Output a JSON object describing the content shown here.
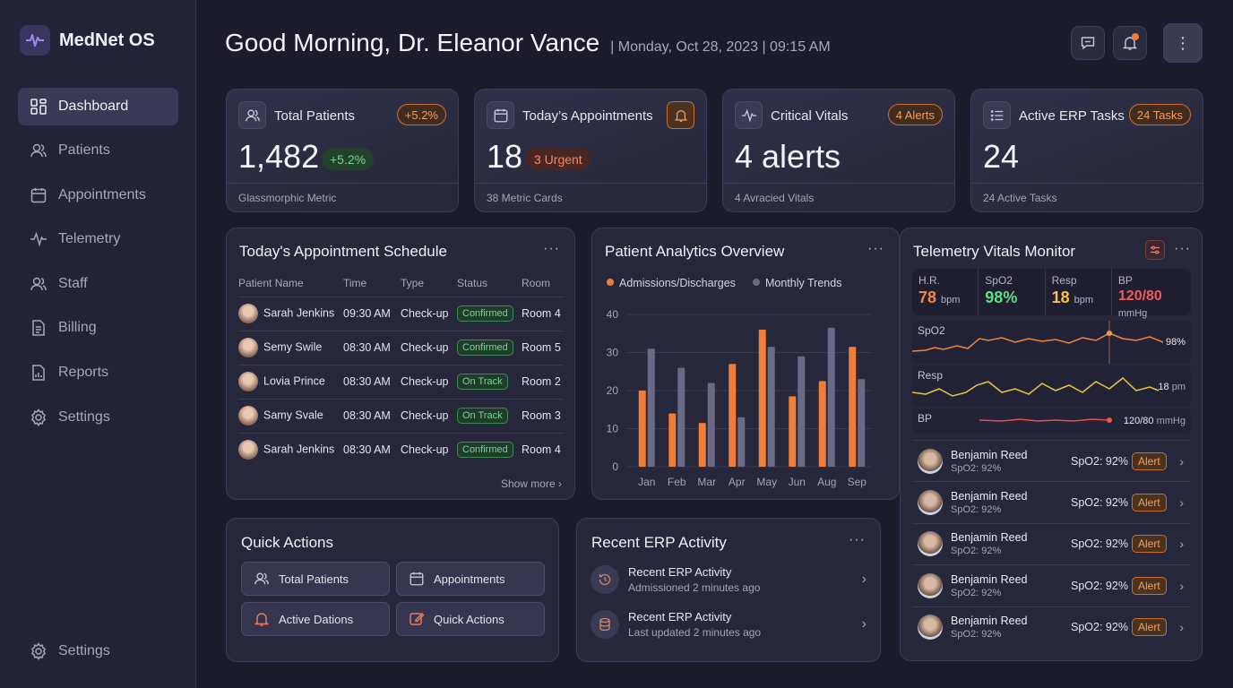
{
  "brand": {
    "name": "MedNet OS"
  },
  "sidebar": {
    "items": [
      {
        "label": "Dashboard",
        "icon": "dashboard-icon"
      },
      {
        "label": "Patients",
        "icon": "users-icon"
      },
      {
        "label": "Appointments",
        "icon": "calendar-icon"
      },
      {
        "label": "Telemetry",
        "icon": "pulse-icon"
      },
      {
        "label": "Staff",
        "icon": "staff-icon"
      },
      {
        "label": "Billing",
        "icon": "billing-icon"
      },
      {
        "label": "Reports",
        "icon": "reports-icon"
      },
      {
        "label": "Settings",
        "icon": "gear-icon"
      }
    ],
    "bottom": {
      "label": "Settings",
      "icon": "gear-icon"
    }
  },
  "header": {
    "greeting": "Good Morning, Dr. Eleanor Vance",
    "datetime": "| Monday, Oct 28, 2023 | 09:15 AM"
  },
  "metrics": [
    {
      "title": "Total Patients",
      "badge": "+5.2%",
      "value": "1,482",
      "pill": "+5.2%",
      "footer": "Glassmorphic Metric"
    },
    {
      "title": "Today’s Appointments",
      "value": "18",
      "pill": "3 Urgent",
      "footer": "38 Metric Cards"
    },
    {
      "title": "Critical Vitals",
      "badge": "4 Alerts",
      "value": "4 alerts",
      "footer": "4 Avracied Vitals"
    },
    {
      "title": "Active ERP Tasks",
      "badge": "24 Tasks",
      "value": "24",
      "footer": "24 Active Tasks"
    }
  ],
  "schedule": {
    "title": "Today's Appointment Schedule",
    "columns": [
      "Patient Name",
      "Time",
      "Type",
      "Status",
      "Room"
    ],
    "rows": [
      {
        "name": "Sarah Jenkins",
        "time": "09:30 AM",
        "type": "Check-up",
        "status": "Confirmed",
        "room": "Room 4"
      },
      {
        "name": "Semy Swile",
        "time": "08:30 AM",
        "type": "Check-up",
        "status": "Confirmed",
        "room": "Room 5"
      },
      {
        "name": "Lovia Prince",
        "time": "08:30 AM",
        "type": "Check-up",
        "status": "On Track",
        "room": "Room 2"
      },
      {
        "name": "Samy Svale",
        "time": "08:30 AM",
        "type": "Check-up",
        "status": "On Track",
        "room": "Room 3"
      },
      {
        "name": "Sarah Jenkins",
        "time": "08:30 AM",
        "type": "Check-up",
        "status": "Confirmed",
        "room": "Room 4"
      }
    ],
    "show_more": "Show more"
  },
  "analytics": {
    "title": "Patient Analytics Overview"
  },
  "chart_data": {
    "type": "bar",
    "categories": [
      "Jan",
      "Feb",
      "Mar",
      "Apr",
      "May",
      "Jun",
      "Aug",
      "Sep"
    ],
    "series": [
      {
        "name": "Admissions/Discharges",
        "color": "#f07e3a",
        "values": [
          20,
          14,
          11.5,
          27,
          36,
          18.5,
          22.5,
          31.5
        ]
      },
      {
        "name": "Monthly Trends",
        "color": "#6b6a86",
        "values": [
          31,
          26,
          22,
          13,
          31.5,
          29,
          36.5,
          23
        ]
      }
    ],
    "ylim": [
      0,
      40
    ],
    "yticks": [
      "0",
      "10",
      "20",
      "30",
      "40"
    ],
    "grid": true,
    "legend": "top-left"
  },
  "telemetry": {
    "title": "Telemetry Vitals Monitor",
    "vitals": [
      {
        "label": "H.R.",
        "value": "78",
        "unit": "bpm",
        "color": "#f0884a"
      },
      {
        "label": "SpO2",
        "value": "98%",
        "unit": "",
        "color": "#5fdc86"
      },
      {
        "label": "Resp",
        "value": "18",
        "unit": "bpm",
        "color": "#f5c34a"
      },
      {
        "label": "BP",
        "value": "120/80",
        "unit": "mmHg",
        "color": "#ef5a5a"
      }
    ],
    "waves": [
      {
        "label": "SpO2",
        "value": "98%",
        "unit": ""
      },
      {
        "label": "Resp",
        "value": "18",
        "unit": "pm"
      },
      {
        "label": "BP",
        "value": "120/80",
        "unit": "mmHg"
      }
    ],
    "patients": [
      {
        "name": "Benjamin Reed",
        "sub": "SpO2: 92%",
        "vital": "SpO2: 92%",
        "alert": "Alert"
      },
      {
        "name": "Benjamin Reed",
        "sub": "SpO2: 92%",
        "vital": "SpO2: 92%",
        "alert": "Alert"
      },
      {
        "name": "Benjamin Reed",
        "sub": "SpO2: 92%",
        "vital": "SpO2: 92%",
        "alert": "Alert"
      },
      {
        "name": "Benjamin Reed",
        "sub": "SpO2: 92%",
        "vital": "SpO2: 92%",
        "alert": "Alert"
      },
      {
        "name": "Benjamin Reed",
        "sub": "SpO2: 92%",
        "vital": "SpO2: 92%",
        "alert": "Alert"
      }
    ]
  },
  "quick_actions": {
    "title": "Quick Actions",
    "buttons": [
      {
        "label": "Total Patients",
        "icon": "users-icon"
      },
      {
        "label": "Appointments",
        "icon": "calendar-icon"
      },
      {
        "label": "Active Dations",
        "icon": "bell-icon"
      },
      {
        "label": "Quick Actions",
        "icon": "edit-icon"
      }
    ]
  },
  "erp": {
    "title": "Recent ERP Activity",
    "items": [
      {
        "title": "Recent ERP Activity",
        "sub": "Admissioned 2 minutes ago",
        "icon": "history-icon"
      },
      {
        "title": "Recent ERP Activity",
        "sub": "Last updated 2 minutes ago",
        "icon": "database-icon"
      }
    ]
  }
}
